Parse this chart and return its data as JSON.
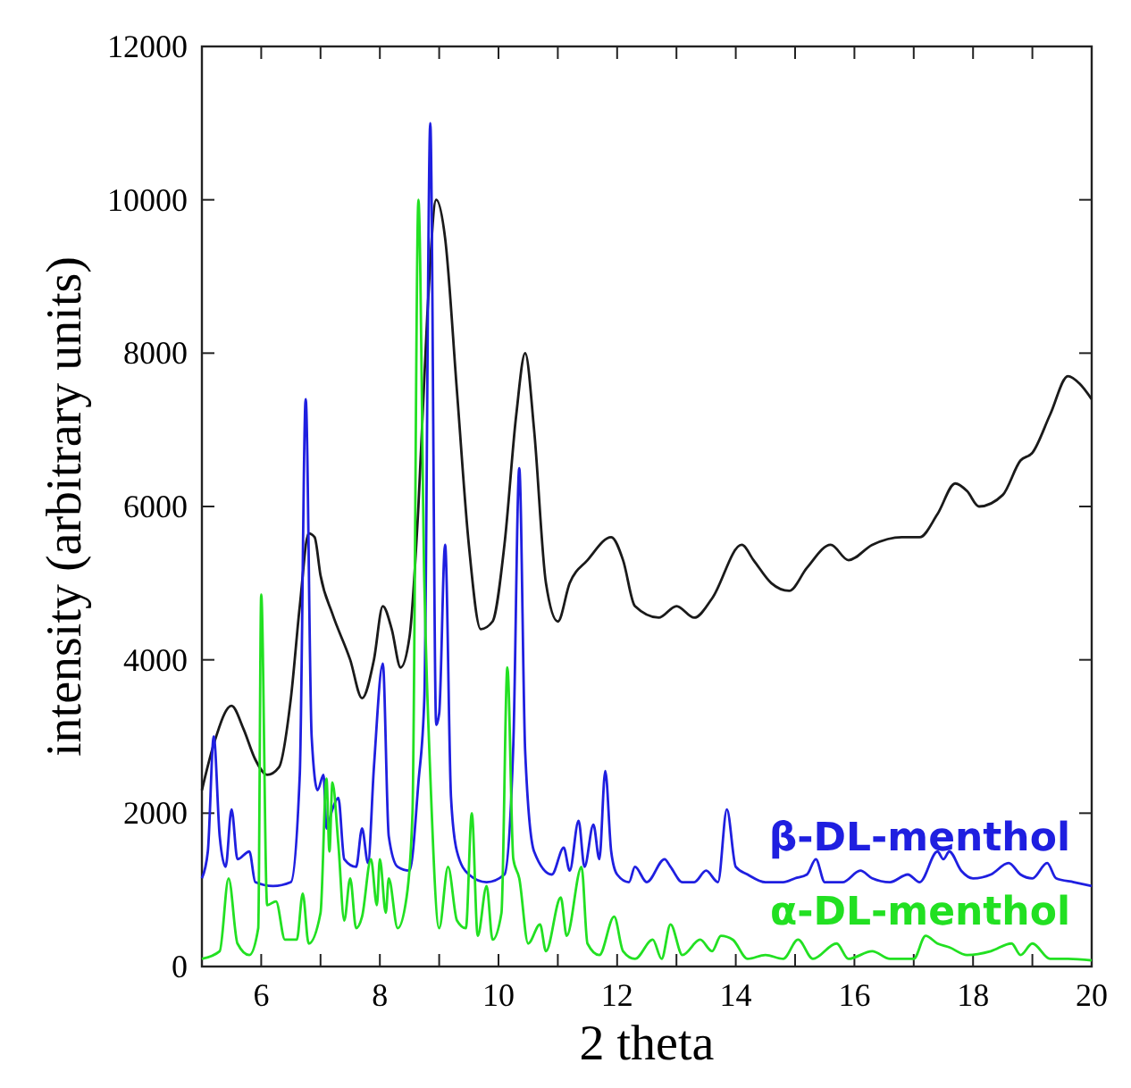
{
  "chart_data": {
    "type": "line",
    "xlabel": "2 theta",
    "ylabel": "intensity (arbitrary units)",
    "xlim": [
      5,
      20
    ],
    "xticks": [
      {
        "value": 5,
        "label": null
      },
      6,
      {
        "value": 7,
        "label": null
      },
      8,
      {
        "value": 9,
        "label": null
      },
      10,
      {
        "value": 11,
        "label": null
      },
      12,
      {
        "value": 13,
        "label": null
      },
      14,
      {
        "value": 15,
        "label": null
      },
      16,
      {
        "value": 17,
        "label": null
      },
      18,
      {
        "value": 19,
        "label": null
      },
      20
    ],
    "ylim": [
      0,
      12000
    ],
    "yticks": [
      0,
      2000,
      4000,
      6000,
      8000,
      10000,
      12000
    ],
    "series": [
      {
        "color": "#1a1a1a",
        "x": [
          5.0,
          5.2,
          5.5,
          5.7,
          5.9,
          6.1,
          6.3,
          6.5,
          6.65,
          6.8,
          6.9,
          7.0,
          7.2,
          7.5,
          7.7,
          7.9,
          8.05,
          8.2,
          8.35,
          8.5,
          8.65,
          8.8,
          8.95,
          9.1,
          9.3,
          9.5,
          9.7,
          9.9,
          10.1,
          10.3,
          10.45,
          10.6,
          10.8,
          11.0,
          11.2,
          11.5,
          11.9,
          12.1,
          12.3,
          12.7,
          13.0,
          13.3,
          13.6,
          14.1,
          14.3,
          14.6,
          14.9,
          15.2,
          15.6,
          15.9,
          16.3,
          16.8,
          17.1,
          17.4,
          17.7,
          17.9,
          18.1,
          18.5,
          18.8,
          19.0,
          19.3,
          19.6,
          19.8,
          20.0
        ],
        "values": [
          2300,
          2900,
          3400,
          3100,
          2700,
          2500,
          2600,
          3500,
          4700,
          5650,
          5600,
          5100,
          4600,
          4000,
          3500,
          4000,
          4700,
          4400,
          3900,
          4300,
          6000,
          8500,
          10000,
          9500,
          7500,
          5500,
          4400,
          4500,
          5500,
          7200,
          8000,
          7000,
          5000,
          4500,
          5000,
          5300,
          5600,
          5300,
          4700,
          4550,
          4700,
          4550,
          4800,
          5500,
          5300,
          5000,
          4900,
          5200,
          5500,
          5300,
          5500,
          5600,
          5600,
          5900,
          6300,
          6200,
          6000,
          6150,
          6600,
          6700,
          7200,
          7700,
          7600,
          7400
        ]
      },
      {
        "name": "β-DL-menthol",
        "color": "#1f1fe0",
        "x": [
          5.0,
          5.1,
          5.2,
          5.3,
          5.4,
          5.5,
          5.6,
          5.8,
          5.9,
          6.2,
          6.5,
          6.65,
          6.75,
          6.85,
          6.95,
          7.05,
          7.1,
          7.2,
          7.3,
          7.4,
          7.6,
          7.7,
          7.8,
          7.9,
          8.05,
          8.15,
          8.3,
          8.5,
          8.65,
          8.75,
          8.85,
          8.95,
          9.0,
          9.1,
          9.2,
          9.3,
          9.5,
          9.8,
          10.1,
          10.25,
          10.35,
          10.45,
          10.6,
          10.9,
          11.1,
          11.2,
          11.35,
          11.45,
          11.6,
          11.7,
          11.8,
          11.9,
          12.0,
          12.2,
          12.3,
          12.5,
          12.8,
          12.9,
          13.1,
          13.3,
          13.5,
          13.7,
          13.85,
          14.0,
          14.2,
          14.5,
          14.8,
          15.0,
          15.2,
          15.35,
          15.5,
          15.8,
          16.1,
          16.3,
          16.6,
          16.9,
          17.1,
          17.4,
          17.5,
          17.6,
          17.8,
          18.0,
          18.3,
          18.6,
          18.8,
          19.0,
          19.25,
          19.4,
          19.7,
          20.0
        ],
        "values": [
          1150,
          1500,
          3000,
          1700,
          1300,
          2050,
          1400,
          1500,
          1100,
          1050,
          1100,
          2500,
          7400,
          3000,
          2300,
          2500,
          1800,
          2050,
          2200,
          1400,
          1300,
          1800,
          1350,
          2600,
          3950,
          1700,
          1300,
          1250,
          2400,
          3500,
          11000,
          3150,
          3300,
          5500,
          2200,
          1500,
          1200,
          1100,
          1200,
          2900,
          6500,
          2800,
          1500,
          1200,
          1550,
          1250,
          1900,
          1300,
          1850,
          1400,
          2550,
          1500,
          1200,
          1100,
          1300,
          1100,
          1400,
          1300,
          1100,
          1100,
          1250,
          1100,
          2050,
          1300,
          1200,
          1100,
          1100,
          1150,
          1200,
          1400,
          1100,
          1100,
          1250,
          1150,
          1100,
          1200,
          1100,
          1500,
          1400,
          1500,
          1250,
          1150,
          1200,
          1350,
          1200,
          1150,
          1350,
          1150,
          1100,
          1050
        ]
      },
      {
        "name": "α-DL-menthol",
        "color": "#22e022",
        "x": [
          5.0,
          5.3,
          5.45,
          5.6,
          5.8,
          5.95,
          6.0,
          6.1,
          6.25,
          6.4,
          6.6,
          6.7,
          6.8,
          7.0,
          7.1,
          7.15,
          7.2,
          7.3,
          7.4,
          7.5,
          7.6,
          7.7,
          7.85,
          7.95,
          8.0,
          8.1,
          8.15,
          8.3,
          8.45,
          8.55,
          8.65,
          8.75,
          8.85,
          9.0,
          9.15,
          9.3,
          9.45,
          9.55,
          9.65,
          9.8,
          9.9,
          10.05,
          10.15,
          10.25,
          10.35,
          10.5,
          10.7,
          10.8,
          11.05,
          11.15,
          11.4,
          11.5,
          11.7,
          11.95,
          12.1,
          12.3,
          12.6,
          12.75,
          12.9,
          13.1,
          13.4,
          13.6,
          13.75,
          13.95,
          14.2,
          14.5,
          14.8,
          15.05,
          15.3,
          15.7,
          15.9,
          16.3,
          16.6,
          17.0,
          17.2,
          17.4,
          17.6,
          17.9,
          18.3,
          18.65,
          18.8,
          19.0,
          19.3,
          19.6,
          20.0
        ],
        "values": [
          100,
          200,
          1150,
          300,
          150,
          500,
          4850,
          800,
          850,
          350,
          350,
          950,
          300,
          700,
          2450,
          1500,
          2400,
          1600,
          600,
          1150,
          500,
          650,
          1400,
          800,
          1400,
          700,
          1150,
          500,
          900,
          2000,
          10000,
          5000,
          2500,
          500,
          1300,
          600,
          500,
          2000,
          400,
          1050,
          350,
          700,
          3900,
          1400,
          1150,
          300,
          550,
          200,
          900,
          400,
          1300,
          300,
          150,
          650,
          200,
          100,
          350,
          100,
          550,
          150,
          350,
          200,
          400,
          350,
          100,
          150,
          100,
          350,
          100,
          300,
          100,
          200,
          100,
          100,
          400,
          300,
          250,
          150,
          200,
          300,
          150,
          300,
          100,
          100,
          80
        ]
      }
    ]
  }
}
